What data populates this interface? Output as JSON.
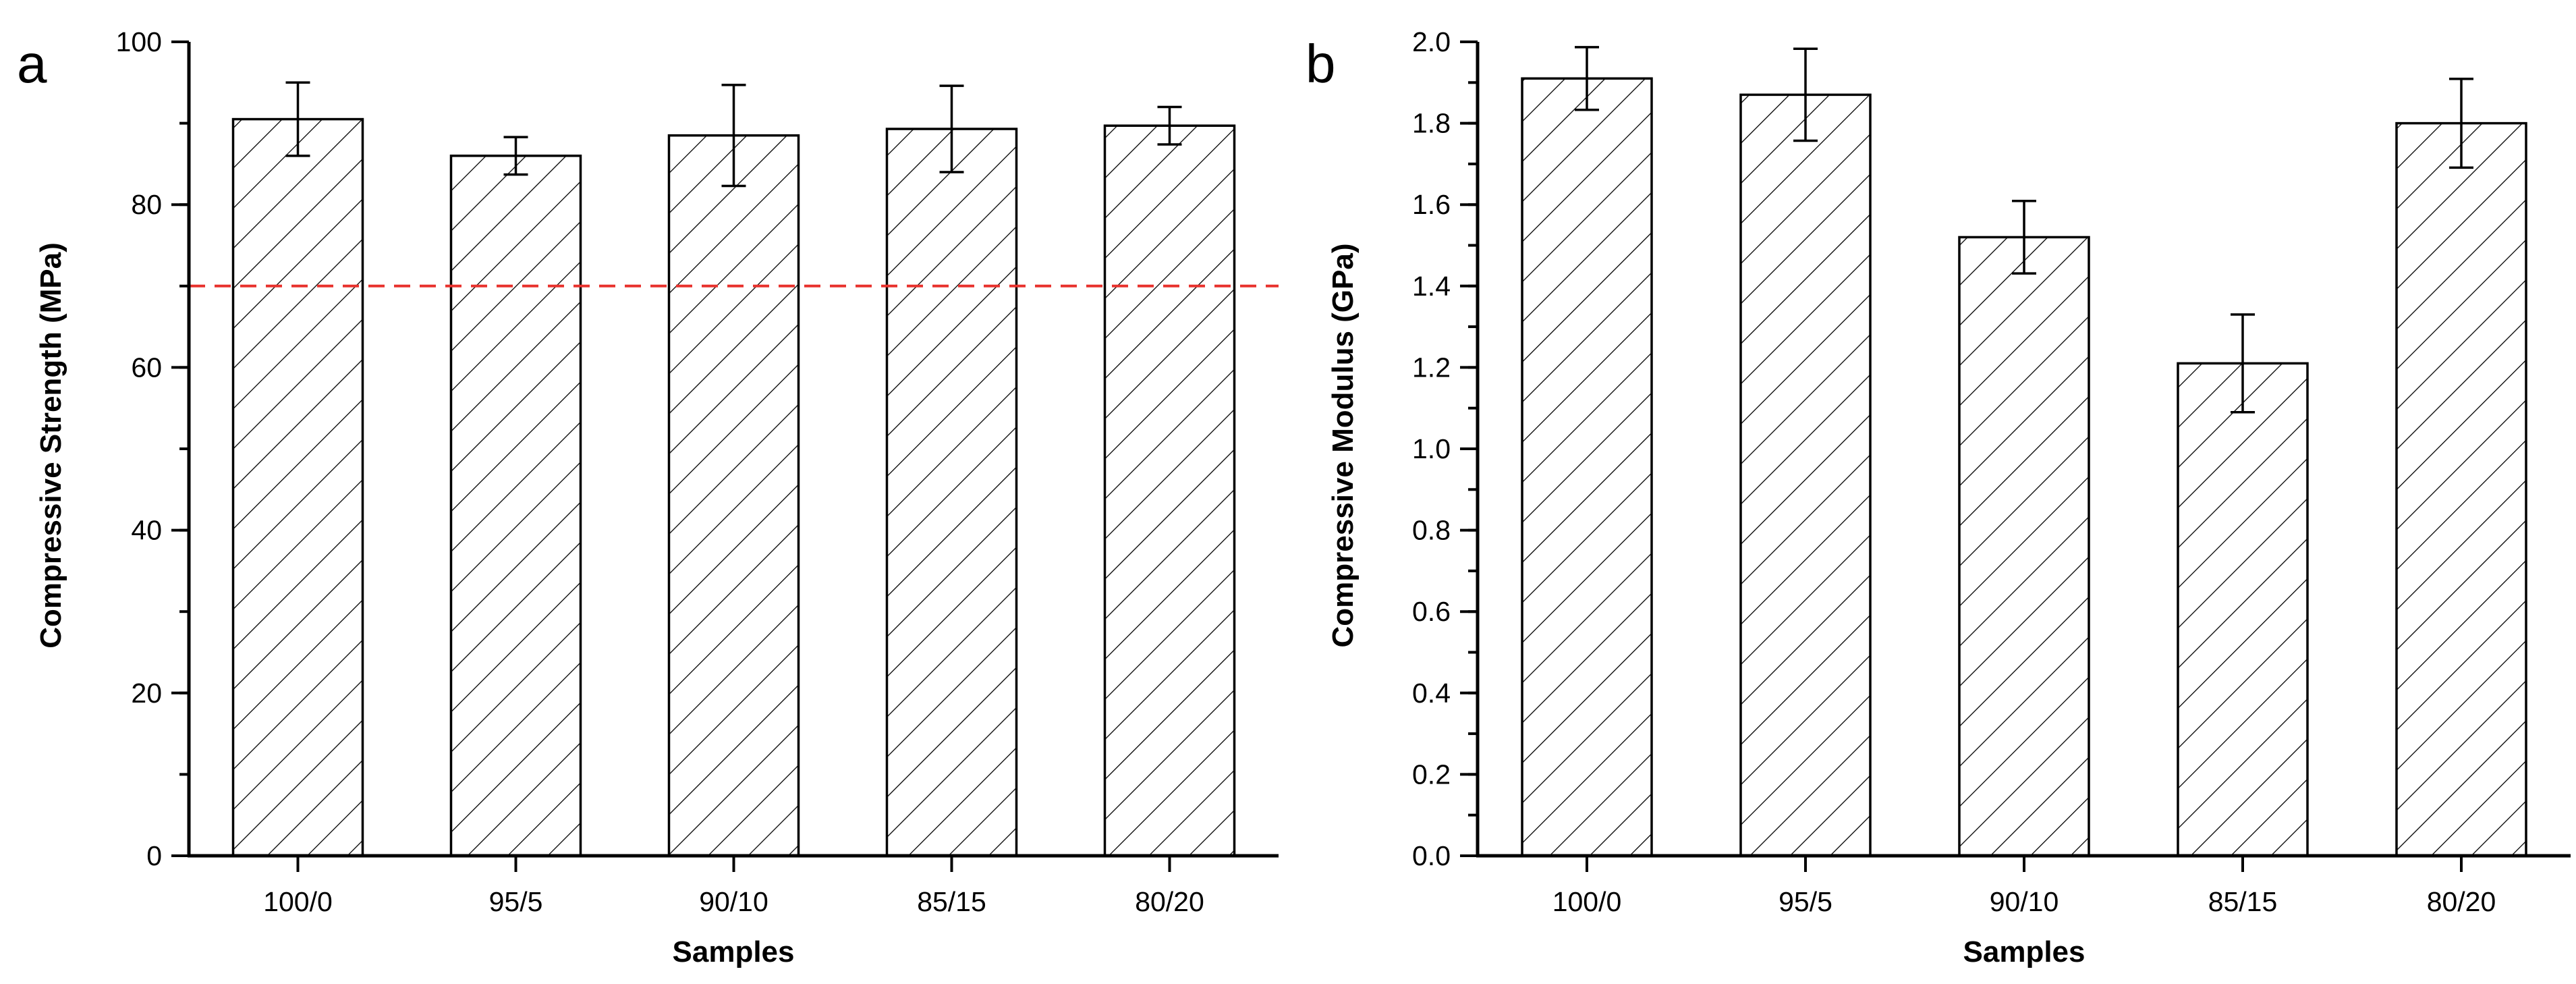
{
  "chart_data": [
    {
      "type": "bar",
      "panel_label": "a",
      "title": "",
      "xlabel": "Samples",
      "ylabel": "Compressive Strength (MPa)",
      "categories": [
        "100/0",
        "95/5",
        "90/10",
        "85/15",
        "80/20"
      ],
      "values": [
        90.5,
        86.0,
        88.5,
        89.3,
        89.7
      ],
      "errors": [
        4.5,
        2.3,
        6.2,
        5.3,
        2.3
      ],
      "ylim": [
        0,
        100
      ],
      "yticks": [
        0,
        20,
        40,
        60,
        80,
        100
      ],
      "ytick_labels": [
        "0",
        "20",
        "40",
        "60",
        "80",
        "100"
      ],
      "reference_line": {
        "value": 70,
        "style": "dashed",
        "color": "#e8322d"
      },
      "bar_fill": "hatched",
      "grid": false
    },
    {
      "type": "bar",
      "panel_label": "b",
      "title": "",
      "xlabel": "Samples",
      "ylabel": "Compressive Modulus (GPa)",
      "categories": [
        "100/0",
        "95/5",
        "90/10",
        "85/15",
        "80/20"
      ],
      "values": [
        1.91,
        1.87,
        1.52,
        1.21,
        1.8
      ],
      "errors": [
        0.077,
        0.113,
        0.089,
        0.12,
        0.109
      ],
      "ylim": [
        0,
        2.0
      ],
      "yticks": [
        0,
        0.2,
        0.4,
        0.6,
        0.8,
        1.0,
        1.2,
        1.4,
        1.6,
        1.8,
        2.0
      ],
      "ytick_labels": [
        "0.0",
        "0.2",
        "0.4",
        "0.6",
        "0.8",
        "1.0",
        "1.2",
        "1.4",
        "1.6",
        "1.8",
        "2.0"
      ],
      "bar_fill": "hatched",
      "grid": false
    }
  ],
  "colors": {
    "axis": "#000000",
    "bar_fill": "#ffffff",
    "hatch": "#000000",
    "reference": "#e8322d"
  }
}
